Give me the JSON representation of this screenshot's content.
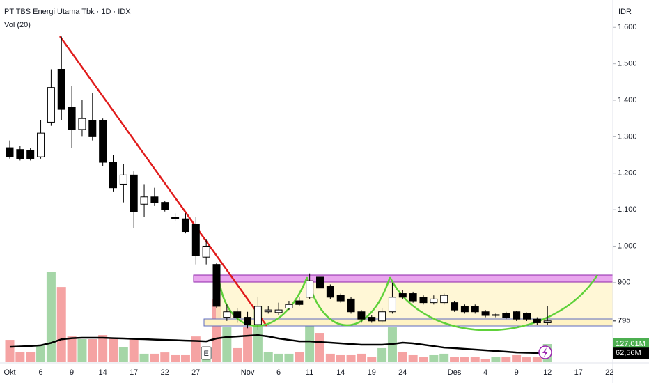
{
  "chart_data": {
    "type": "candlestick",
    "title": "PT TBS Energi Utama Tbk · 1D · IDX",
    "currency": "IDR",
    "categories": [
      "Okt",
      null,
      null,
      "6",
      null,
      null,
      "9",
      null,
      null,
      "14",
      null,
      null,
      "17",
      null,
      null,
      "22",
      null,
      null,
      "27",
      null,
      null,
      null,
      null,
      "Nov",
      null,
      null,
      "6",
      null,
      null,
      "11",
      null,
      null,
      "14",
      null,
      null,
      "19",
      null,
      null,
      "24",
      null,
      null,
      null,
      null,
      "Des",
      null,
      null,
      "4",
      null,
      null,
      "9",
      null,
      null,
      "12",
      null,
      null,
      "17",
      null,
      null,
      "22"
    ],
    "open": [
      1270,
      1265,
      1262,
      1245,
      1340,
      1485,
      1380,
      1320,
      1345,
      1345,
      1230,
      1170,
      1195,
      1115,
      1135,
      1120,
      1080,
      1075,
      1060,
      970,
      950,
      805,
      820,
      805,
      785,
      820,
      818,
      830,
      850,
      860,
      915,
      890,
      865,
      855,
      820,
      805,
      795,
      820,
      870,
      870,
      860,
      845,
      845,
      845,
      835,
      835,
      820,
      810,
      815,
      820,
      815,
      800,
      790,
      null,
      null,
      null,
      null,
      null,
      null
    ],
    "high": [
      1290,
      1275,
      1270,
      1345,
      1485,
      1575,
      1440,
      1400,
      1420,
      1350,
      1250,
      1225,
      1205,
      1170,
      1160,
      1125,
      1090,
      1090,
      1080,
      1020,
      955,
      840,
      830,
      820,
      860,
      835,
      845,
      850,
      860,
      925,
      940,
      895,
      870,
      860,
      825,
      810,
      830,
      900,
      880,
      875,
      865,
      865,
      870,
      850,
      840,
      840,
      825,
      815,
      820,
      822,
      818,
      805,
      835,
      null,
      null,
      null,
      null,
      null,
      null
    ],
    "low": [
      1240,
      1235,
      1235,
      1240,
      1330,
      1345,
      1270,
      1300,
      1290,
      1220,
      1150,
      1120,
      1050,
      1080,
      1110,
      1095,
      1070,
      1035,
      950,
      950,
      830,
      795,
      790,
      775,
      770,
      815,
      812,
      825,
      835,
      855,
      880,
      855,
      845,
      815,
      790,
      790,
      790,
      815,
      855,
      845,
      840,
      840,
      840,
      820,
      815,
      815,
      805,
      805,
      800,
      795,
      795,
      785,
      785,
      null,
      null,
      null,
      null,
      null,
      null
    ],
    "close": [
      1245,
      1240,
      1240,
      1310,
      1435,
      1375,
      1320,
      1350,
      1300,
      1230,
      1160,
      1195,
      1095,
      1135,
      1120,
      1100,
      1075,
      1040,
      975,
      1000,
      835,
      820,
      805,
      785,
      835,
      825,
      825,
      840,
      840,
      905,
      885,
      860,
      850,
      820,
      800,
      795,
      820,
      860,
      860,
      850,
      845,
      855,
      865,
      825,
      820,
      820,
      810,
      812,
      805,
      800,
      800,
      790,
      795,
      null,
      null,
      null,
      null,
      null,
      null
    ],
    "up_color": "#ffffff",
    "down_color": "#000000",
    "ylim": [
      682,
      1675
    ],
    "yticks": [
      {
        "value": 1600,
        "label": "1.600"
      },
      {
        "value": 1500,
        "label": "1.500"
      },
      {
        "value": 1400,
        "label": "1.400"
      },
      {
        "value": 1300,
        "label": "1.300"
      },
      {
        "value": 1200,
        "label": "1.200"
      },
      {
        "value": 1100,
        "label": "1.100"
      },
      {
        "value": 1000,
        "label": "1.000"
      },
      900
    ],
    "last_price": 795,
    "volume": {
      "name": "Vol (20)",
      "up_color": "#a5d6a7",
      "down_color": "#f5a3a3",
      "values": [
        156,
        73,
        73,
        122,
        635,
        527,
        180,
        161,
        161,
        190,
        171,
        107,
        166,
        59,
        59,
        68,
        49,
        49,
        180,
        98,
        439,
        244,
        98,
        244,
        390,
        73,
        59,
        59,
        73,
        293,
        205,
        59,
        49,
        49,
        59,
        39,
        98,
        244,
        73,
        49,
        39,
        49,
        59,
        39,
        39,
        39,
        24,
        39,
        39,
        49,
        34,
        34,
        127.01,
        null,
        null,
        null,
        null,
        null,
        null
      ],
      "last_label": "127,01M",
      "last_color": "#4caf50"
    },
    "volume_ma": {
      "color": "#000000",
      "values": [
        107,
        110,
        113,
        118,
        135,
        160,
        168,
        171,
        171,
        171,
        168,
        166,
        163,
        161,
        158,
        156,
        154,
        151,
        149,
        146,
        166,
        176,
        180,
        185,
        190,
        180,
        166,
        156,
        146,
        146,
        141,
        137,
        132,
        127,
        122,
        122,
        122,
        127,
        137,
        132,
        122,
        112,
        102,
        98,
        93,
        88,
        83,
        78,
        73,
        68,
        66,
        64,
        62.56,
        null,
        null,
        null,
        null,
        null,
        null
      ],
      "last_label": "62,56M"
    },
    "vlim": [
      0,
      2540
    ],
    "event_marker": {
      "label": "E",
      "category": 19
    }
  }
}
